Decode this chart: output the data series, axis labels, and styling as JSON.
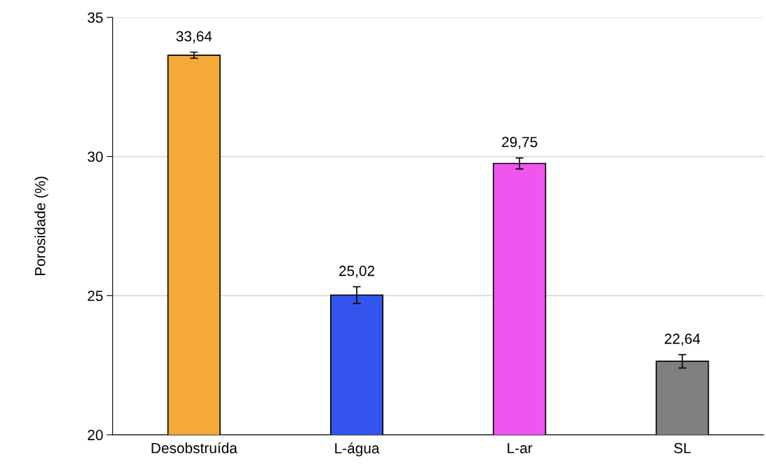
{
  "chart_data": {
    "type": "bar",
    "ylabel": "Porosidade (%)",
    "categories": [
      "Desobstruída",
      "L-água",
      "L-ar",
      "SL"
    ],
    "values": [
      33.64,
      25.02,
      29.75,
      22.64
    ],
    "colors": [
      "#f5a938",
      "#3355ee",
      "#f055f0",
      "#808080"
    ],
    "errors": [
      0.11,
      0.3,
      0.2,
      0.24
    ],
    "value_labels": [
      "33,64",
      "25,02",
      "29,75",
      "22,64"
    ],
    "ylim": [
      20,
      35
    ],
    "yticks": [
      20,
      25,
      30,
      35
    ],
    "grid": "y"
  }
}
